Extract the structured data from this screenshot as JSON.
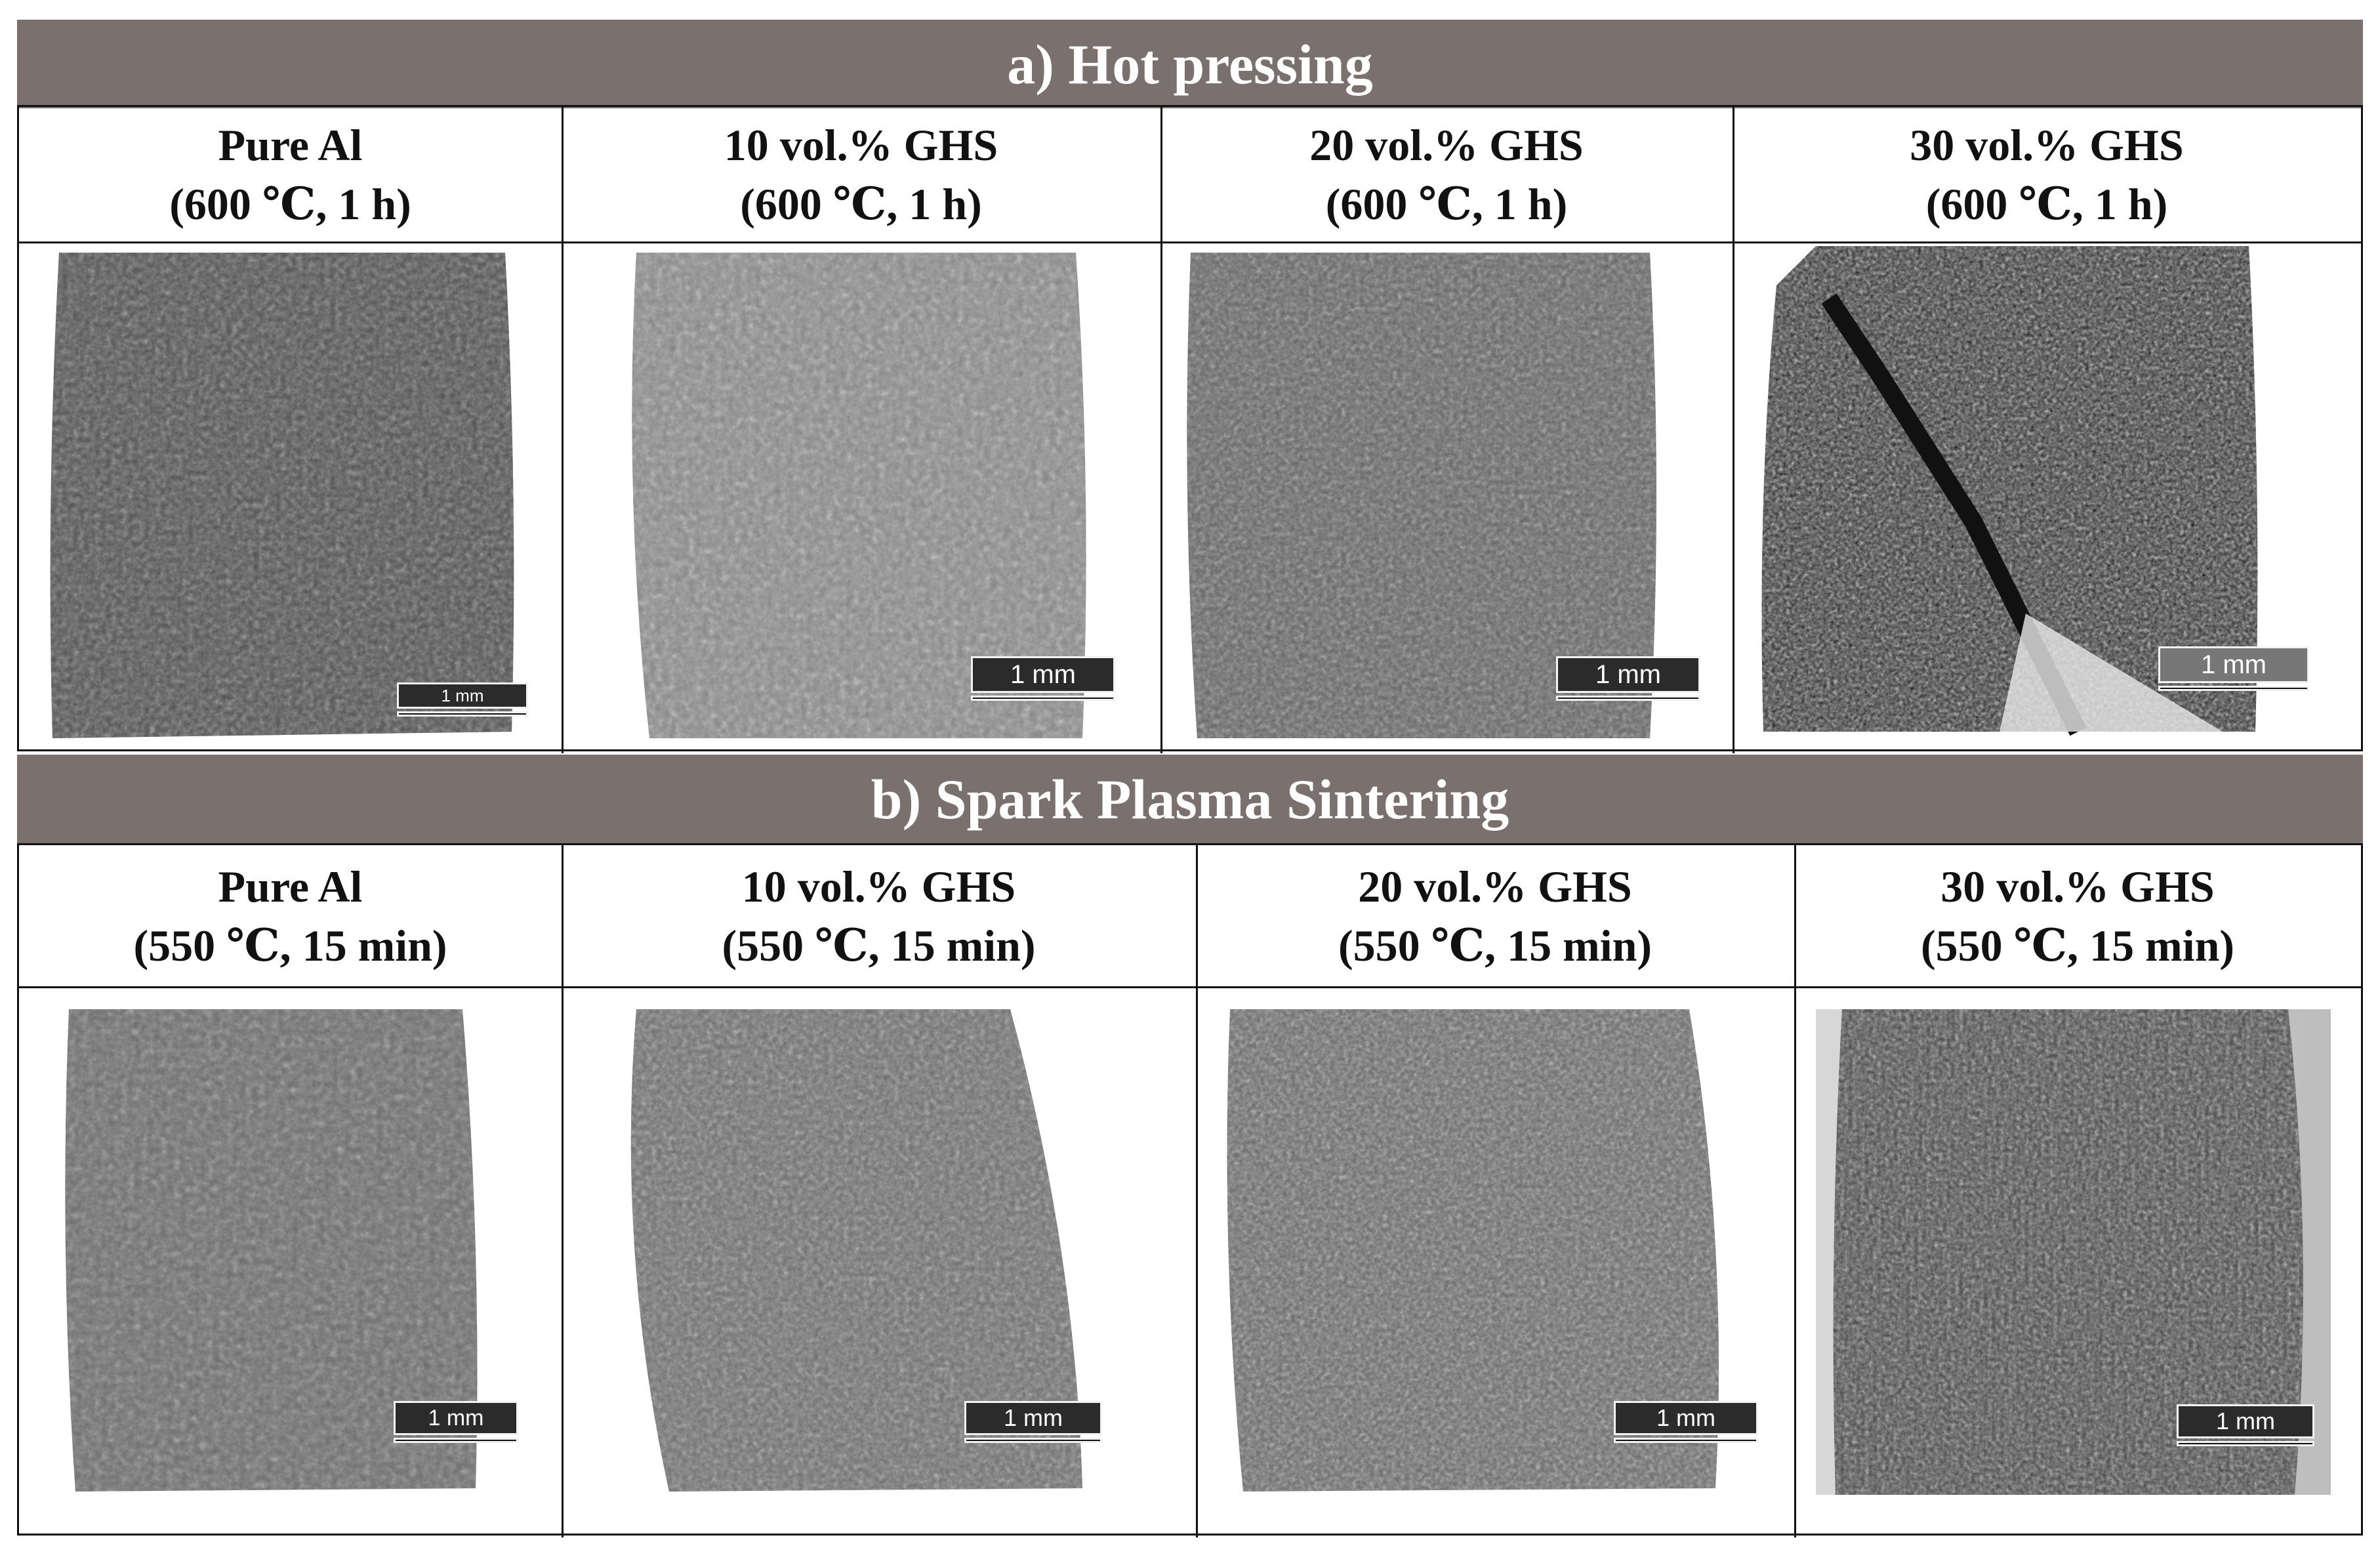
{
  "section_a": {
    "title": "a) Hot pressing",
    "columns": [
      {
        "name": "Pure Al",
        "condition": "(600 ℃, 1 h)",
        "scale": "1 mm"
      },
      {
        "name": "10 vol.% GHS",
        "condition": "(600 ℃, 1 h)",
        "scale": "1 mm"
      },
      {
        "name": "20 vol.% GHS",
        "condition": "(600 ℃, 1 h)",
        "scale": "1 mm"
      },
      {
        "name": "30 vol.% GHS",
        "condition": "(600 ℃, 1 h)",
        "scale": "1 mm"
      }
    ]
  },
  "section_b": {
    "title": "b) Spark Plasma Sintering",
    "columns": [
      {
        "name": "Pure Al",
        "condition": "(550 ℃, 15 min)",
        "scale": "1 mm"
      },
      {
        "name": "10 vol.% GHS",
        "condition": "(550 ℃, 15 min)",
        "scale": "1 mm"
      },
      {
        "name": "20 vol.% GHS",
        "condition": "(550 ℃, 15 min)",
        "scale": "1 mm"
      },
      {
        "name": "30 vol.% GHS",
        "condition": "(550 ℃, 15 min)",
        "scale": "1 mm"
      }
    ]
  }
}
